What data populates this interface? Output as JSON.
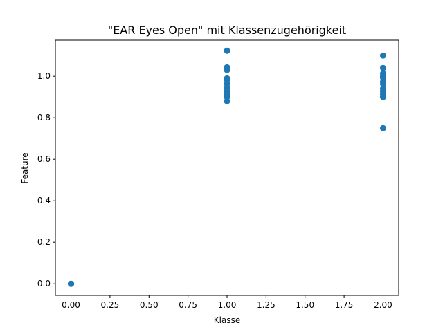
{
  "chart_data": {
    "type": "scatter",
    "title": "\"EAR Eyes Open\" mit Klassenzugehörigkeit",
    "xlabel": "Klasse",
    "ylabel": "Feature",
    "xlim": [
      -0.1,
      2.1
    ],
    "ylim": [
      -0.056,
      1.174
    ],
    "x_ticks": [
      0.0,
      0.25,
      0.5,
      0.75,
      1.0,
      1.25,
      1.5,
      1.75,
      2.0
    ],
    "x_tick_labels": [
      "0.00",
      "0.25",
      "0.50",
      "0.75",
      "1.00",
      "1.25",
      "1.50",
      "1.75",
      "2.00"
    ],
    "y_ticks": [
      0.0,
      0.2,
      0.4,
      0.6,
      0.8,
      1.0
    ],
    "y_tick_labels": [
      "0.0",
      "0.2",
      "0.4",
      "0.6",
      "0.8",
      "1.0"
    ],
    "grid": false,
    "marker_color": "#1f77b4",
    "points": [
      {
        "x": 0,
        "y": 0.0
      },
      {
        "x": 0,
        "y": 0.0
      },
      {
        "x": 0,
        "y": 0.0
      },
      {
        "x": 1,
        "y": 1.123
      },
      {
        "x": 1,
        "y": 1.043
      },
      {
        "x": 1,
        "y": 1.03
      },
      {
        "x": 1,
        "y": 0.99
      },
      {
        "x": 1,
        "y": 0.983
      },
      {
        "x": 1,
        "y": 0.963
      },
      {
        "x": 1,
        "y": 0.943
      },
      {
        "x": 1,
        "y": 0.927
      },
      {
        "x": 1,
        "y": 0.913
      },
      {
        "x": 1,
        "y": 0.9
      },
      {
        "x": 1,
        "y": 0.88
      },
      {
        "x": 2,
        "y": 1.1
      },
      {
        "x": 2,
        "y": 1.04
      },
      {
        "x": 2,
        "y": 1.013
      },
      {
        "x": 2,
        "y": 1.0
      },
      {
        "x": 2,
        "y": 0.993
      },
      {
        "x": 2,
        "y": 0.973
      },
      {
        "x": 2,
        "y": 0.963
      },
      {
        "x": 2,
        "y": 0.94
      },
      {
        "x": 2,
        "y": 0.927
      },
      {
        "x": 2,
        "y": 0.913
      },
      {
        "x": 2,
        "y": 0.9
      },
      {
        "x": 2,
        "y": 0.75
      }
    ]
  }
}
